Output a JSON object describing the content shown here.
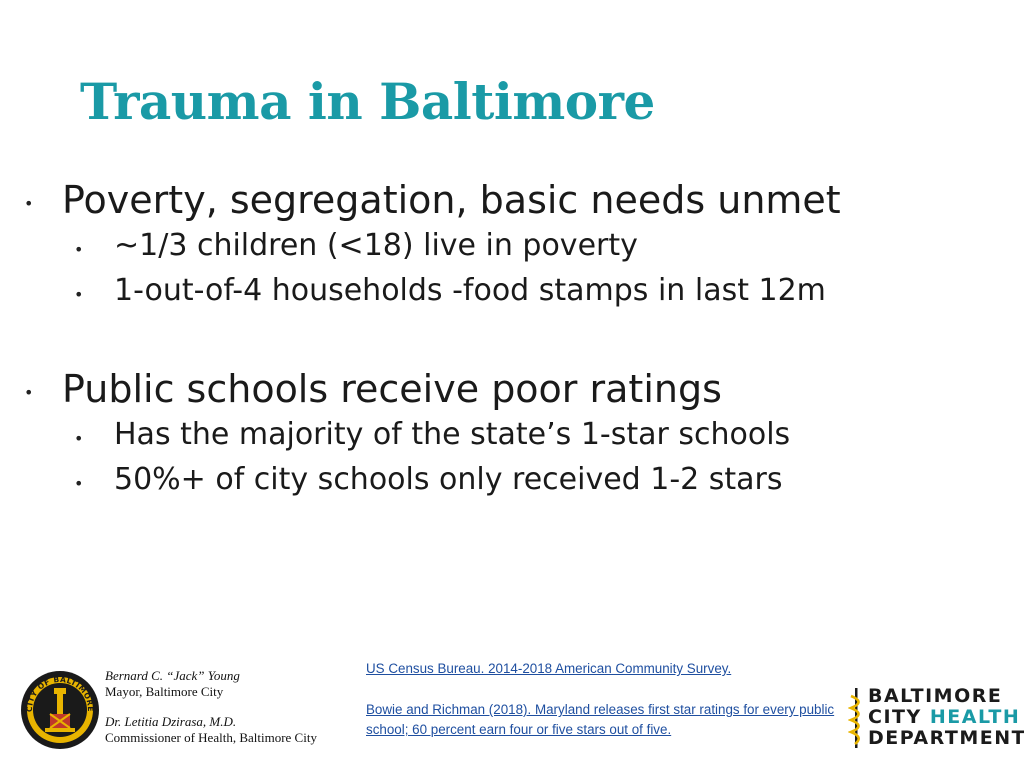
{
  "title": "Trauma in Baltimore",
  "sections": [
    {
      "heading": "Poverty, segregation, basic needs unmet",
      "items": [
        "~1/3 children (<18) live in poverty",
        "1-out-of-4 households -food stamps in last 12m"
      ]
    },
    {
      "heading": "Public schools receive poor ratings",
      "items": [
        "Has the majority of the state’s 1-star schools",
        "50%+ of city schools only received 1-2 stars"
      ]
    }
  ],
  "footer": {
    "mayor_name": "Bernard C. “Jack” Young",
    "mayor_title": "Mayor, Baltimore City",
    "commissioner_name": "Dr. Letitia Dzirasa, M.D.",
    "commissioner_title": "Commissioner of Health, Baltimore City",
    "references": [
      "US Census Bureau.  2014-2018 American Community Survey.",
      "Bowie and Richman (2018).  Maryland releases first star ratings for every public school; 60 percent earn four or five stars out of five."
    ],
    "logo_line1": "BALTIMORE",
    "logo_line2_a": "CITY",
    "logo_line2_b": "HEALTH",
    "logo_line3": "DEPARTMENT",
    "seal_text": "CITY OF BALTIMORE"
  },
  "colors": {
    "accent": "#1a9aa6",
    "link": "#1f4fa0",
    "seal_gold": "#e8b400"
  }
}
